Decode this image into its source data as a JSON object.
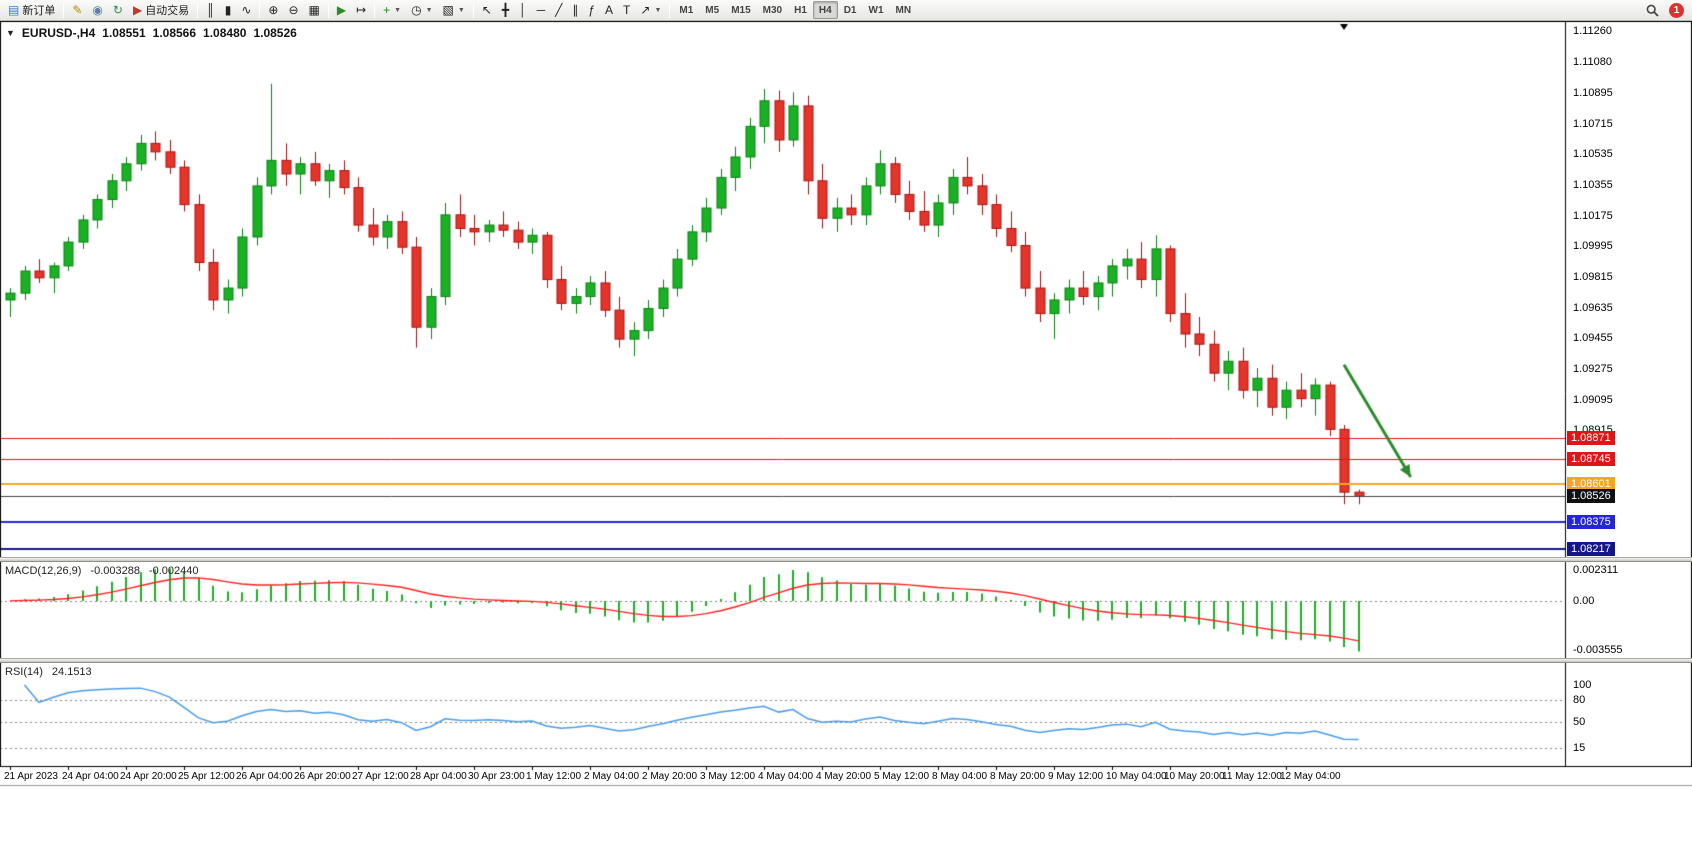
{
  "toolbar": {
    "notification_count": "1",
    "groups": [
      {
        "name": "order",
        "items": [
          {
            "name": "new-order-button",
            "label": "新订单",
            "glyph": "▤",
            "glyph_color": "#2f7ed8"
          }
        ]
      },
      {
        "name": "platform",
        "items": [
          {
            "name": "metaeditor-button",
            "glyph": "✎",
            "glyph_color": "#b8860b"
          },
          {
            "name": "community-button",
            "glyph": "◉",
            "glyph_color": "#5b7fa6"
          },
          {
            "name": "refresh-button",
            "glyph": "↻",
            "glyph_color": "#2e8b57"
          },
          {
            "name": "autotrading-button",
            "label": "自动交易",
            "glyph": "▶",
            "glyph_color": "#c0392b"
          }
        ]
      },
      {
        "name": "chart-type",
        "items": [
          {
            "name": "bar-chart-button",
            "glyph": "║"
          },
          {
            "name": "candlestick-chart-button",
            "glyph": "▮"
          },
          {
            "name": "line-chart-button",
            "glyph": "∿"
          }
        ]
      },
      {
        "name": "zoom",
        "items": [
          {
            "name": "zoom-in-button",
            "glyph": "⊕"
          },
          {
            "name": "zoom-out-button",
            "glyph": "⊖"
          },
          {
            "name": "tile-windows-button",
            "glyph": "▦"
          }
        ]
      },
      {
        "name": "scroll",
        "items": [
          {
            "name": "auto-scroll-button",
            "glyph": "▶",
            "glyph_color": "#2d8a2d"
          },
          {
            "name": "chart-shift-button",
            "glyph": "↦"
          }
        ]
      },
      {
        "name": "insert",
        "items": [
          {
            "name": "indicators-button",
            "glyph": "+",
            "glyph_color": "#1f8a1f",
            "dropdown": true
          },
          {
            "name": "periods-button",
            "glyph": "◷",
            "dropdown": true
          },
          {
            "name": "templates-button",
            "glyph": "▧",
            "dropdown": true
          }
        ]
      },
      {
        "name": "line-studies",
        "items": [
          {
            "name": "cursor-button",
            "glyph": "↖"
          },
          {
            "name": "crosshair-button",
            "glyph": "╋"
          },
          {
            "name": "vertical-line-button",
            "glyph": "│"
          },
          {
            "name": "horizontal-line-button",
            "glyph": "─"
          },
          {
            "name": "trendline-button",
            "glyph": "╱"
          },
          {
            "name": "equidistant-channel-button",
            "glyph": "∥"
          },
          {
            "name": "fibonacci-button",
            "glyph": "ƒ"
          },
          {
            "name": "text-button",
            "glyph": "A"
          },
          {
            "name": "text-label-button",
            "glyph": "T"
          },
          {
            "name": "arrows-button",
            "glyph": "↗",
            "dropdown": true
          }
        ]
      },
      {
        "name": "timeframes",
        "kind": "timeframes",
        "items": [
          {
            "name": "tf-m1-button",
            "label": "M1"
          },
          {
            "name": "tf-m5-button",
            "label": "M5"
          },
          {
            "name": "tf-m15-button",
            "label": "M15"
          },
          {
            "name": "tf-m30-button",
            "label": "M30"
          },
          {
            "name": "tf-h1-button",
            "label": "H1"
          },
          {
            "name": "tf-h4-button",
            "label": "H4",
            "active": true
          },
          {
            "name": "tf-d1-button",
            "label": "D1"
          },
          {
            "name": "tf-w1-button",
            "label": "W1"
          },
          {
            "name": "tf-mn-button",
            "label": "MN"
          }
        ]
      }
    ]
  },
  "chart": {
    "header": {
      "symbol_period": "EURUSD-,H4",
      "open": "1.08551",
      "high": "1.08566",
      "low": "1.08480",
      "close": "1.08526"
    }
  },
  "chart_data": {
    "type": "candlestick",
    "title": "EURUSD-,H4",
    "ylim": [
      1.081701,
      1.113129
    ],
    "x_label_every": 4,
    "x_labels": [
      "21 Apr 2023",
      "24 Apr 04:00",
      "24 Apr 20:00",
      "25 Apr 12:00",
      "26 Apr 04:00",
      "26 Apr 20:00",
      "27 Apr 12:00",
      "28 Apr 04:00",
      "30 Apr 23:00",
      "1 May 12:00",
      "2 May 04:00",
      "2 May 20:00",
      "3 May 12:00",
      "4 May 04:00",
      "4 May 20:00",
      "5 May 12:00",
      "8 May 04:00",
      "8 May 20:00",
      "9 May 12:00",
      "10 May 04:00",
      "10 May 20:00",
      "11 May 12:00",
      "12 May 04:00"
    ],
    "y_tick_labels": [
      "1.11260",
      "1.11080",
      "1.10895",
      "1.10715",
      "1.10535",
      "1.10355",
      "1.10175",
      "1.09995",
      "1.09815",
      "1.09635",
      "1.09455",
      "1.09275",
      "1.09095",
      "1.08915"
    ],
    "colors": {
      "background": "#ffffff",
      "frame": "#000000",
      "candle_up": "#19b224",
      "candle_up_border": "#0c8015",
      "candle_down": "#e5352b",
      "candle_down_border": "#a81212"
    },
    "candles": [
      [
        1.0968,
        1.0975,
        1.0958,
        1.0972
      ],
      [
        1.0972,
        1.0988,
        1.0968,
        1.0985
      ],
      [
        1.0985,
        1.0992,
        1.0978,
        1.0981
      ],
      [
        1.0981,
        1.099,
        1.0972,
        1.0988
      ],
      [
        1.0988,
        1.1005,
        1.0985,
        1.1002
      ],
      [
        1.1002,
        1.1018,
        1.0998,
        1.1015
      ],
      [
        1.1015,
        1.103,
        1.101,
        1.1027
      ],
      [
        1.1027,
        1.1042,
        1.1022,
        1.1038
      ],
      [
        1.1038,
        1.1052,
        1.1032,
        1.1048
      ],
      [
        1.1048,
        1.1065,
        1.1044,
        1.106
      ],
      [
        1.106,
        1.1067,
        1.105,
        1.1055
      ],
      [
        1.1055,
        1.1062,
        1.1042,
        1.1046
      ],
      [
        1.1046,
        1.105,
        1.102,
        1.1024
      ],
      [
        1.1024,
        1.103,
        1.0985,
        1.099
      ],
      [
        1.099,
        1.0998,
        1.0962,
        1.0968
      ],
      [
        1.0968,
        1.098,
        1.096,
        1.0975
      ],
      [
        1.0975,
        1.101,
        1.097,
        1.1005
      ],
      [
        1.1005,
        1.104,
        1.1,
        1.1035
      ],
      [
        1.1035,
        1.1095,
        1.103,
        1.105
      ],
      [
        1.105,
        1.106,
        1.1035,
        1.1042
      ],
      [
        1.1042,
        1.1052,
        1.103,
        1.1048
      ],
      [
        1.1048,
        1.1055,
        1.1035,
        1.1038
      ],
      [
        1.1038,
        1.1048,
        1.1028,
        1.1044
      ],
      [
        1.1044,
        1.105,
        1.103,
        1.1034
      ],
      [
        1.1034,
        1.104,
        1.1008,
        1.1012
      ],
      [
        1.1012,
        1.1022,
        1.1,
        1.1005
      ],
      [
        1.1005,
        1.1018,
        1.0998,
        1.1014
      ],
      [
        1.1014,
        1.102,
        1.0995,
        1.0999
      ],
      [
        1.0999,
        1.1005,
        1.094,
        1.0952
      ],
      [
        1.0952,
        1.0975,
        1.0945,
        1.097
      ],
      [
        1.097,
        1.1025,
        1.0965,
        1.1018
      ],
      [
        1.1018,
        1.103,
        1.1005,
        1.101
      ],
      [
        1.101,
        1.1018,
        1.1,
        1.1008
      ],
      [
        1.1008,
        1.1015,
        1.1002,
        1.1012
      ],
      [
        1.1012,
        1.102,
        1.1005,
        1.1009
      ],
      [
        1.1009,
        1.1014,
        1.0998,
        1.1002
      ],
      [
        1.1002,
        1.101,
        1.0995,
        1.1006
      ],
      [
        1.1006,
        1.1008,
        1.0975,
        1.098
      ],
      [
        1.098,
        1.0988,
        1.0962,
        1.0966
      ],
      [
        1.0966,
        1.0975,
        1.096,
        1.097
      ],
      [
        1.097,
        1.0982,
        1.0965,
        1.0978
      ],
      [
        1.0978,
        1.0985,
        1.0958,
        1.0962
      ],
      [
        1.0962,
        1.097,
        1.094,
        1.0945
      ],
      [
        1.0945,
        1.0955,
        1.0935,
        1.095
      ],
      [
        1.095,
        1.0968,
        1.0945,
        1.0963
      ],
      [
        1.0963,
        1.098,
        1.0958,
        1.0975
      ],
      [
        1.0975,
        1.0998,
        1.097,
        1.0992
      ],
      [
        1.0992,
        1.1012,
        1.0988,
        1.1008
      ],
      [
        1.1008,
        1.1028,
        1.1002,
        1.1022
      ],
      [
        1.1022,
        1.1045,
        1.1018,
        1.104
      ],
      [
        1.104,
        1.1058,
        1.1032,
        1.1052
      ],
      [
        1.1052,
        1.1075,
        1.1045,
        1.107
      ],
      [
        1.107,
        1.1092,
        1.106,
        1.1085
      ],
      [
        1.1085,
        1.1091,
        1.1055,
        1.1062
      ],
      [
        1.1062,
        1.109,
        1.1058,
        1.1082
      ],
      [
        1.1082,
        1.1088,
        1.103,
        1.1038
      ],
      [
        1.1038,
        1.1048,
        1.101,
        1.1016
      ],
      [
        1.1016,
        1.1028,
        1.1008,
        1.1022
      ],
      [
        1.1022,
        1.103,
        1.1012,
        1.1018
      ],
      [
        1.1018,
        1.104,
        1.1012,
        1.1035
      ],
      [
        1.1035,
        1.1056,
        1.103,
        1.1048
      ],
      [
        1.1048,
        1.1052,
        1.1025,
        1.103
      ],
      [
        1.103,
        1.1038,
        1.1015,
        1.102
      ],
      [
        1.102,
        1.1032,
        1.1008,
        1.1012
      ],
      [
        1.1012,
        1.103,
        1.1005,
        1.1025
      ],
      [
        1.1025,
        1.1045,
        1.1018,
        1.104
      ],
      [
        1.104,
        1.1052,
        1.103,
        1.1035
      ],
      [
        1.1035,
        1.1042,
        1.1018,
        1.1024
      ],
      [
        1.1024,
        1.103,
        1.1005,
        1.101
      ],
      [
        1.101,
        1.102,
        1.0996,
        1.1
      ],
      [
        1.1,
        1.1008,
        1.097,
        1.0975
      ],
      [
        1.0975,
        1.0985,
        1.0955,
        1.096
      ],
      [
        1.096,
        1.0972,
        1.0945,
        1.0968
      ],
      [
        1.0968,
        1.098,
        1.096,
        1.0975
      ],
      [
        1.0975,
        1.0985,
        1.0965,
        1.097
      ],
      [
        1.097,
        1.0982,
        1.0962,
        1.0978
      ],
      [
        1.0978,
        1.0992,
        1.097,
        1.0988
      ],
      [
        1.0988,
        1.0998,
        1.098,
        1.0992
      ],
      [
        1.0992,
        1.1002,
        1.0975,
        1.098
      ],
      [
        1.098,
        1.1006,
        1.097,
        1.0998
      ],
      [
        1.0998,
        1.1,
        1.0955,
        1.096
      ],
      [
        1.096,
        1.0972,
        1.094,
        1.0948
      ],
      [
        1.0948,
        1.0958,
        1.0935,
        1.0942
      ],
      [
        1.0942,
        1.095,
        1.092,
        1.0925
      ],
      [
        1.0925,
        1.0938,
        1.0915,
        1.0932
      ],
      [
        1.0932,
        1.094,
        1.091,
        1.0915
      ],
      [
        1.0915,
        1.0928,
        1.0905,
        1.0922
      ],
      [
        1.0922,
        1.093,
        1.09,
        1.0905
      ],
      [
        1.0905,
        1.092,
        1.0898,
        1.0915
      ],
      [
        1.0915,
        1.0925,
        1.0905,
        1.091
      ],
      [
        1.091,
        1.0922,
        1.09,
        1.0918
      ],
      [
        1.0918,
        1.092,
        1.0888,
        1.0892
      ],
      [
        1.0892,
        1.08945,
        1.0848,
        1.08551
      ],
      [
        1.08551,
        1.08566,
        1.0848,
        1.08526
      ]
    ],
    "horizontal_lines": [
      {
        "label": "1.08871",
        "price": 1.08871,
        "color": "#e01515",
        "width": 1,
        "label_bg": "#e01515",
        "label_fg": "#ffffff"
      },
      {
        "label": "1.08745",
        "price": 1.08745,
        "color": "#e01515",
        "width": 1,
        "label_bg": "#e01515",
        "label_fg": "#ffffff"
      },
      {
        "label": "1.08601",
        "price": 1.08601,
        "color": "#f5a623",
        "width": 2,
        "label_bg": "#f5a623",
        "label_fg": "#ffffff"
      },
      {
        "label": "1.08526",
        "price": 1.08526,
        "color": "#444444",
        "width": 1,
        "label_bg": "#111111",
        "label_fg": "#ffffff"
      },
      {
        "label": "1.08375",
        "price": 1.08375,
        "color": "#2424e0",
        "width": 2,
        "label_bg": "#2424e0",
        "label_fg": "#ffffff"
      },
      {
        "label": "1.08217",
        "price": 1.08217,
        "color": "#15158c",
        "width": 2,
        "label_bg": "#15158c",
        "label_fg": "#ffffff"
      }
    ],
    "arrow": {
      "from_index": 92,
      "from_price": 1.093,
      "to_index": 96.6,
      "to_price": 1.0864,
      "color": "#2e8b2e",
      "width": 3
    },
    "shift_marker_index": 92,
    "indicators": [
      {
        "name": "MACD",
        "label": "MACD(12,26,9)",
        "params": [
          12,
          26,
          9
        ],
        "values": [
          "-0.003288",
          "-0.002440"
        ],
        "scale_labels": [
          "0.002311",
          "0.00",
          "-0.003555"
        ],
        "histogram_color": "#1cb025",
        "signal_color": "#ff2222"
      },
      {
        "name": "RSI",
        "label": "RSI(14)",
        "params": [
          14
        ],
        "values": [
          "24.1513"
        ],
        "scale_labels": [
          "100",
          "80",
          "50",
          "15"
        ],
        "levels": [
          80,
          50,
          15
        ],
        "ylim": [
          -10,
          130
        ],
        "line_color": "#4a9ce8"
      }
    ]
  }
}
